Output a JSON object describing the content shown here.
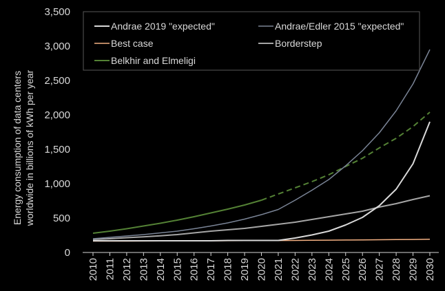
{
  "colors": {
    "background": "#000000",
    "axis": "#d9d9d9",
    "text": "#d9d9d9",
    "legend_box_border": "#595959"
  },
  "chart_data": {
    "type": "line",
    "title": "",
    "xlabel": "",
    "ylabel": "Energy consumption of data centers worldwide in billions of kWh per year",
    "ylabel_lines": [
      "Energy consumption of data centers",
      "worldwide in billions of kWh per year"
    ],
    "ylim": [
      0,
      3500
    ],
    "yticks": [
      0,
      500,
      1000,
      1500,
      2000,
      2500,
      3000,
      3500
    ],
    "ytick_labels": [
      "0",
      "500",
      "1,000",
      "1,500",
      "2,000",
      "2,500",
      "3,000",
      "3,500"
    ],
    "x": [
      2010,
      2011,
      2012,
      2013,
      2014,
      2015,
      2016,
      2017,
      2018,
      2019,
      2020,
      2021,
      2022,
      2023,
      2024,
      2025,
      2026,
      2027,
      2028,
      2029,
      2030
    ],
    "x_tick_labels": [
      "2010",
      "2011",
      "2012",
      "2013",
      "2014",
      "2015",
      "2016",
      "2017",
      "2018",
      "2019",
      "2020",
      "2021",
      "2022",
      "2023",
      "2024",
      "2025",
      "2026",
      "2027",
      "2028",
      "2029",
      "2030"
    ],
    "grid": false,
    "legend_position": "top",
    "series": [
      {
        "name": "Andrae 2019 \"expected\"",
        "color": "#d9d9d9",
        "width": 2,
        "values": [
          170,
          170,
          170,
          170,
          170,
          170,
          170,
          170,
          175,
          175,
          175,
          175,
          210,
          255,
          310,
          400,
          510,
          680,
          920,
          1290,
          1900
        ]
      },
      {
        "name": "Andrae/Edler 2015 \"expected\"",
        "color": "#7a8496",
        "width": 1.5,
        "values": [
          200,
          220,
          240,
          260,
          285,
          310,
          345,
          385,
          430,
          485,
          550,
          625,
          760,
          905,
          1060,
          1260,
          1480,
          1740,
          2060,
          2450,
          2950
        ]
      },
      {
        "name": "Best case",
        "color": "#f4b183",
        "width": 1.5,
        "values": [
          165,
          165,
          165,
          166,
          167,
          168,
          169,
          170,
          171,
          172,
          173,
          174,
          175,
          177,
          179,
          181,
          183,
          185,
          187,
          189,
          192
        ]
      },
      {
        "name": "Borderstep",
        "color": "#a6a6a6",
        "width": 2,
        "values": [
          190,
          200,
          215,
          228,
          242,
          260,
          285,
          310,
          330,
          350,
          380,
          410,
          440,
          480,
          520,
          560,
          600,
          660,
          710,
          770,
          825
        ]
      },
      {
        "name": "Belkhir and Elmeligi",
        "color": "#548235",
        "width": 2,
        "values": [
          280,
          310,
          345,
          385,
          425,
          470,
          520,
          575,
          630,
          690,
          760,
          850,
          940,
          1030,
          1130,
          1250,
          1370,
          1520,
          1660,
          1830,
          2040
        ],
        "solid_until": 2020
      }
    ]
  }
}
